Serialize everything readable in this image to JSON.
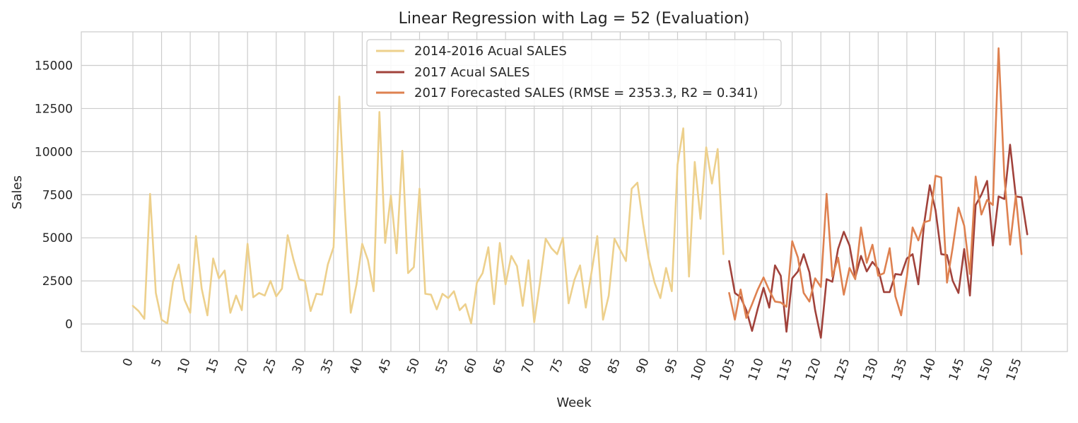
{
  "chart_data": {
    "type": "line",
    "title": "Linear Regression with Lag = 52 (Evaluation)",
    "xlabel": "Week",
    "ylabel": "Sales",
    "xlim": [
      -9,
      163
    ],
    "ylim": [
      -1600,
      16950
    ],
    "xticks": [
      0,
      5,
      10,
      15,
      20,
      25,
      30,
      35,
      40,
      45,
      50,
      55,
      60,
      65,
      70,
      75,
      80,
      85,
      90,
      95,
      100,
      105,
      110,
      115,
      120,
      125,
      130,
      135,
      140,
      145,
      150,
      155
    ],
    "yticks": [
      0,
      2500,
      5000,
      7500,
      10000,
      12500,
      15000
    ],
    "grid": true,
    "legend_position": "top-center",
    "series": [
      {
        "name": "2014-2016 Acual SALES",
        "color": "#edd08c",
        "x_start": 0,
        "values": [
          1050,
          750,
          300,
          7550,
          1800,
          250,
          30,
          2450,
          3450,
          1400,
          650,
          5100,
          2050,
          500,
          3800,
          2650,
          3100,
          650,
          1650,
          800,
          4650,
          1550,
          1800,
          1650,
          2500,
          1600,
          2050,
          5150,
          3750,
          2600,
          2500,
          750,
          1750,
          1700,
          3450,
          4450,
          13200,
          6500,
          650,
          2300,
          4650,
          3700,
          1900,
          12300,
          4700,
          7450,
          4100,
          10050,
          2950,
          3300,
          7850,
          1750,
          1700,
          850,
          1750,
          1500,
          1900,
          800,
          1150,
          30,
          2400,
          2950,
          4450,
          1150,
          4700,
          2300,
          3950,
          3350,
          1050,
          3700,
          100,
          2400,
          4950,
          4400,
          4050,
          5000,
          1200,
          2550,
          3400,
          950,
          3000,
          5100,
          250,
          1650,
          4950,
          4300,
          3650,
          7850,
          8200,
          5800,
          3750,
          2400,
          1500,
          3250,
          1900,
          9250,
          11350,
          2750,
          9400,
          6100,
          10250,
          8150,
          10150,
          4050
        ]
      },
      {
        "name": "2017 Acual SALES",
        "color": "#a1423b",
        "x_start": 104,
        "values": [
          3650,
          1800,
          1550,
          800,
          -400,
          900,
          2100,
          950,
          3400,
          2800,
          -450,
          2650,
          3050,
          4050,
          3000,
          800,
          -800,
          2600,
          2450,
          4350,
          5350,
          4550,
          2700,
          3950,
          3050,
          3600,
          3200,
          1850,
          1850,
          2900,
          2850,
          3800,
          4050,
          2300,
          5800,
          8050,
          6600,
          4050,
          4000,
          2500,
          1800,
          4350,
          1650,
          6900,
          7500,
          8300,
          4550,
          7400,
          7250,
          10400,
          7400,
          7350,
          5200
        ]
      },
      {
        "name": "2017 Forecasted SALES (RMSE = 2353.3, R2 = 0.341)",
        "color": "#de8150",
        "x_start": 104,
        "values": [
          1800,
          250,
          2000,
          350,
          1150,
          2000,
          2700,
          1950,
          1300,
          1250,
          1000,
          4800,
          3850,
          1800,
          1300,
          2650,
          2150,
          7550,
          2750,
          3850,
          1700,
          3250,
          2600,
          5600,
          3550,
          4600,
          2800,
          2950,
          4400,
          1600,
          500,
          2750,
          5600,
          4850,
          5900,
          6000,
          8600,
          8500,
          2400,
          4450,
          6750,
          5700,
          2900,
          8550,
          6350,
          7200,
          6900,
          16000,
          8550,
          4600,
          7450,
          4050
        ]
      }
    ]
  }
}
